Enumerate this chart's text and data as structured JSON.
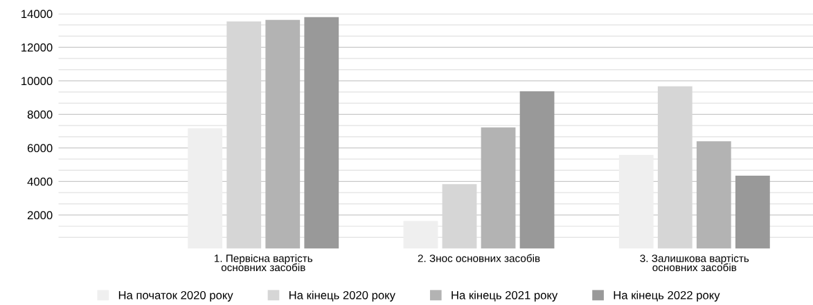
{
  "chart_data": {
    "type": "bar",
    "categories": [
      "1. Первісна вартість\nосновних засобів",
      "2. Знос основних засобів",
      "3. Залишкова вартість\nосновних засобів"
    ],
    "series": [
      {
        "name": "На початок 2020 року",
        "color": "#efefef",
        "values": [
          7170,
          1650,
          5580
        ]
      },
      {
        "name": "На кінець 2020 року",
        "color": "#d6d6d6",
        "values": [
          13540,
          3840,
          9680
        ]
      },
      {
        "name": "На кінець 2021 року",
        "color": "#b3b3b3",
        "values": [
          13630,
          7220,
          6400
        ]
      },
      {
        "name": "На кінець 2022 року",
        "color": "#999999",
        "values": [
          13800,
          9380,
          4350
        ]
      }
    ],
    "ylim": [
      0,
      14000
    ],
    "yticks": [
      2000,
      4000,
      6000,
      8000,
      10000,
      12000,
      14000
    ],
    "grid": "y",
    "legend": "bottom"
  }
}
